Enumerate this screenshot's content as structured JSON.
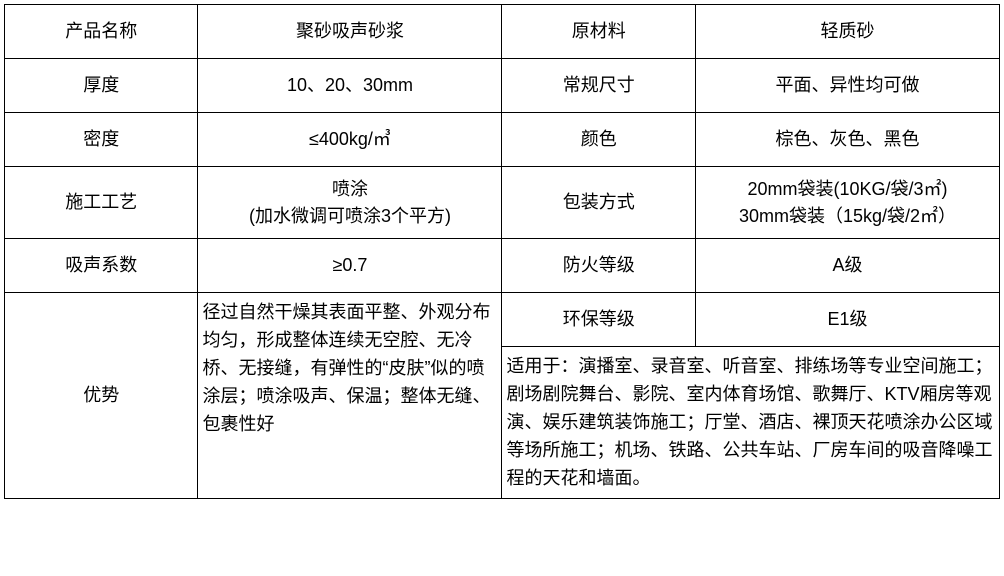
{
  "table": {
    "rows": [
      {
        "l1": "产品名称",
        "v1": "聚砂吸声砂浆",
        "l2": "原材料",
        "v2": "轻质砂"
      },
      {
        "l1": "厚度",
        "v1": "10、20、30mm",
        "l2": "常规尺寸",
        "v2": "平面、异性均可做"
      },
      {
        "l1": "密度",
        "v1": "≤400kg/㎥",
        "l2": "颜色",
        "v2": "棕色、灰色、黑色"
      },
      {
        "l1": "施工工艺",
        "v1": "喷涂\n(加水微调可喷涂3个平方)",
        "l2": "包装方式",
        "v2": "20mm袋装(10KG/袋/3㎡)\n30mm袋装（15kg/袋/2㎡）"
      },
      {
        "l1": "吸声系数",
        "v1": "≥0.7",
        "l2": "防火等级",
        "v2": "A级"
      }
    ],
    "env_label": "环保等级",
    "env_value": "E1级",
    "advantage_label": "优势",
    "advantage_text": "径过自然干燥其表面平整、外观分布均匀，形成整体连续无空腔、无冷桥、无接缝，有弹性的“皮肤”似的喷涂层；喷涂吸声、保温；整体无缝、包裹性好",
    "application_text": "适用于：演播室、录音室、听音室、排练场等专业空间施工；剧场剧院舞台、影院、室内体育场馆、歌舞厅、KTV厢房等观演、娱乐建筑装饰施工；厅堂、酒店、裸顶天花喷涂办公区域等场所施工；机场、铁路、公共车站、厂房车间的吸音降噪工程的天花和墙面。"
  },
  "style": {
    "border_color": "#000000",
    "background_color": "#ffffff",
    "font_size_pt": 14
  }
}
